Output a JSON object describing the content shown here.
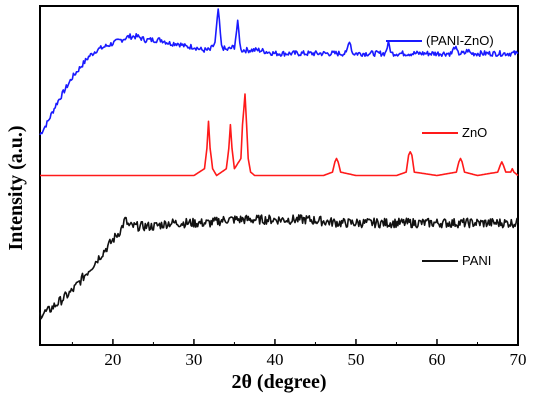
{
  "chart_data": {
    "type": "line",
    "xlabel": "2θ (degree)",
    "ylabel": "Intensity (a.u.)",
    "xlim": [
      11,
      70
    ],
    "x_ticks": [
      20,
      30,
      40,
      50,
      60,
      70
    ],
    "y_ticks_shown": false,
    "grid": false,
    "legend_placement": "right, beside each curve",
    "series": [
      {
        "name": "(PANI-ZnO)",
        "color": "#1a1aff",
        "x": [
          11,
          12,
          13,
          14,
          15,
          16,
          17,
          18,
          19,
          20,
          21,
          22,
          23,
          24,
          25,
          26,
          27,
          28,
          29,
          30,
          31,
          32,
          32.6,
          33.0,
          33.4,
          34,
          35.0,
          35.4,
          35.8,
          37,
          38,
          40,
          42,
          44,
          46,
          48,
          48.8,
          49.2,
          49.6,
          51,
          53,
          53.6,
          54.0,
          54.4,
          56,
          58,
          60,
          61.8,
          62.2,
          62.6,
          63.4,
          63.8,
          64.2,
          66,
          68,
          70
        ],
        "values": [
          0.62,
          0.66,
          0.71,
          0.75,
          0.79,
          0.82,
          0.85,
          0.87,
          0.88,
          0.89,
          0.9,
          0.91,
          0.91,
          0.9,
          0.9,
          0.9,
          0.89,
          0.89,
          0.88,
          0.88,
          0.87,
          0.87,
          0.89,
          0.99,
          0.88,
          0.87,
          0.88,
          0.95,
          0.87,
          0.87,
          0.87,
          0.86,
          0.86,
          0.86,
          0.86,
          0.86,
          0.86,
          0.9,
          0.86,
          0.86,
          0.86,
          0.86,
          0.89,
          0.86,
          0.86,
          0.86,
          0.86,
          0.86,
          0.88,
          0.86,
          0.86,
          0.87,
          0.86,
          0.86,
          0.86,
          0.86
        ]
      },
      {
        "name": "ZnO",
        "color": "#ff1a1a",
        "x": [
          11,
          20,
          30,
          31.3,
          31.6,
          31.8,
          32.0,
          32.3,
          32.8,
          34.0,
          34.3,
          34.5,
          34.7,
          35.0,
          35.8,
          36.0,
          36.3,
          36.5,
          36.7,
          37.0,
          37.5,
          40,
          46,
          47.1,
          47.4,
          47.6,
          47.8,
          48.1,
          50,
          55,
          56.2,
          56.5,
          56.7,
          56.9,
          57.2,
          60,
          62.4,
          62.7,
          62.9,
          63.1,
          63.4,
          65,
          67.5,
          67.8,
          68.0,
          68.2,
          68.5,
          69.1,
          69.3,
          69.5,
          70
        ],
        "values": [
          0.5,
          0.5,
          0.5,
          0.52,
          0.58,
          0.66,
          0.58,
          0.52,
          0.5,
          0.52,
          0.58,
          0.65,
          0.58,
          0.52,
          0.55,
          0.65,
          0.74,
          0.65,
          0.55,
          0.51,
          0.5,
          0.5,
          0.5,
          0.51,
          0.54,
          0.55,
          0.54,
          0.51,
          0.5,
          0.5,
          0.51,
          0.56,
          0.57,
          0.56,
          0.51,
          0.5,
          0.51,
          0.54,
          0.55,
          0.54,
          0.51,
          0.5,
          0.51,
          0.53,
          0.54,
          0.53,
          0.51,
          0.51,
          0.52,
          0.51,
          0.5
        ]
      },
      {
        "name": "PANI",
        "color": "#111111",
        "x": [
          11,
          12,
          13,
          14,
          15,
          16,
          17,
          18,
          19,
          20,
          21,
          21.5,
          22,
          23,
          24,
          25,
          26,
          27,
          28,
          30,
          32,
          34,
          36,
          38,
          40,
          42,
          44,
          46,
          48,
          50,
          52,
          54,
          56,
          58,
          60,
          62,
          64,
          66,
          68,
          70
        ],
        "values": [
          0.09,
          0.1,
          0.12,
          0.14,
          0.16,
          0.19,
          0.22,
          0.25,
          0.28,
          0.31,
          0.34,
          0.37,
          0.35,
          0.35,
          0.35,
          0.35,
          0.355,
          0.36,
          0.36,
          0.36,
          0.36,
          0.37,
          0.37,
          0.37,
          0.37,
          0.37,
          0.37,
          0.365,
          0.36,
          0.36,
          0.36,
          0.36,
          0.36,
          0.36,
          0.36,
          0.36,
          0.36,
          0.36,
          0.36,
          0.36
        ]
      }
    ]
  }
}
